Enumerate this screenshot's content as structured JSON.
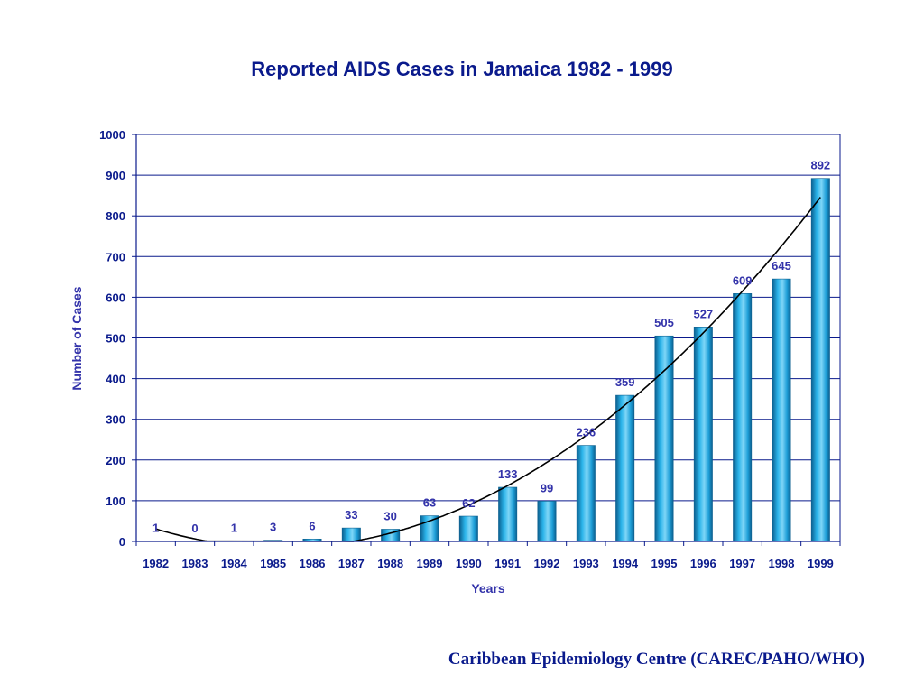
{
  "chart_data": {
    "type": "bar",
    "title": "Reported AIDS Cases in Jamaica 1982 - 1999",
    "xlabel": "Years",
    "ylabel": "Number of Cases",
    "categories": [
      "1982",
      "1983",
      "1984",
      "1985",
      "1986",
      "1987",
      "1988",
      "1989",
      "1990",
      "1991",
      "1992",
      "1993",
      "1994",
      "1995",
      "1996",
      "1997",
      "1998",
      "1999"
    ],
    "series": [
      {
        "values": [
          1,
          0,
          1,
          3,
          6,
          33,
          30,
          63,
          62,
          133,
          99,
          236,
          359,
          505,
          527,
          609,
          645,
          892
        ]
      }
    ],
    "ylim": [
      0,
      1000
    ],
    "yticks": [
      0,
      100,
      200,
      300,
      400,
      500,
      600,
      700,
      800,
      900,
      1000
    ],
    "grid": true,
    "legend": "none",
    "trendline": "polynomial",
    "colors": {
      "bar": "#1e9fd8",
      "bar_dark": "#0b5f8f",
      "grid": "#0a1a8c",
      "text": "#0a1a8c",
      "label": "#3333aa",
      "trend": "#000000"
    }
  },
  "footer": {
    "credit": "Caribbean Epidemiology Centre (CAREC/PAHO/WHO)"
  }
}
